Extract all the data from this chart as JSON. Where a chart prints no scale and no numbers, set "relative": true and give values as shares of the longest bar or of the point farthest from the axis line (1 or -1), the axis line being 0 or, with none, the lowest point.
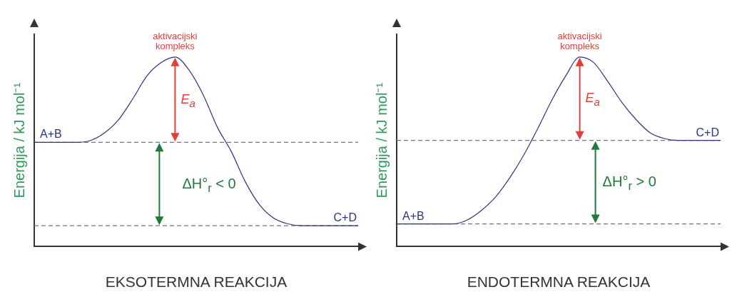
{
  "chart_data": [
    {
      "type": "line",
      "relative": true,
      "xlabel": "EKSOTERMNA REAKCIJA",
      "ylabel": "Energija / kJ mol⁻¹",
      "categories": [
        null,
        null,
        null,
        null,
        null,
        null,
        null,
        null,
        null,
        null,
        null,
        null,
        null,
        null,
        null,
        null,
        null,
        null,
        null,
        null,
        null,
        null,
        null,
        null
      ],
      "series": [
        {
          "color": "#2b3580",
          "values": [
            0.55,
            0.55,
            0.55,
            0.55,
            0.56,
            0.6,
            0.67,
            0.78,
            0.9,
            0.97,
            1,
            0.93,
            0.8,
            0.63,
            0.5,
            0.34,
            0.22,
            0.15,
            0.12,
            0.11,
            0.11,
            0.11,
            0.11,
            0.11
          ]
        }
      ],
      "ref_lines": [
        {
          "axis": "y",
          "value": 0.55,
          "color": "#777777",
          "line_style": "dashed"
        },
        {
          "axis": "y",
          "value": 0.11,
          "color": "#777777",
          "line_style": "dashed"
        }
      ],
      "annotations": [
        "aktivacijski kompleks",
        "A+B",
        "C+D",
        "E$_{a}$",
        "ΔH°$_{r}$ < 0"
      ],
      "marker": "none",
      "grid": false,
      "legend": false
    },
    {
      "type": "line",
      "relative": true,
      "xlabel": "ENDOTERMNA REAKCIJA",
      "ylabel": "Energija / kJ mol⁻¹",
      "categories": [
        null,
        null,
        null,
        null,
        null,
        null,
        null,
        null,
        null,
        null,
        null,
        null,
        null,
        null,
        null,
        null,
        null,
        null,
        null,
        null,
        null,
        null,
        null,
        null
      ],
      "series": [
        {
          "color": "#2b3580",
          "values": [
            0.12,
            0.12,
            0.12,
            0.12,
            0.12,
            0.14,
            0.19,
            0.26,
            0.36,
            0.48,
            0.62,
            0.77,
            0.9,
            1,
            0.97,
            0.87,
            0.76,
            0.67,
            0.6,
            0.57,
            0.56,
            0.56,
            0.56,
            0.56
          ]
        }
      ],
      "ref_lines": [
        {
          "axis": "y",
          "value": 0.56,
          "color": "#777777",
          "line_style": "dashed"
        },
        {
          "axis": "y",
          "value": 0.12,
          "color": "#777777",
          "line_style": "dashed"
        }
      ],
      "annotations": [
        "aktivacijski kompleks",
        "A+B",
        "C+D",
        "E$_{a}$",
        "ΔH°$_{r}$ > 0"
      ],
      "marker": "none",
      "grid": false,
      "legend": false
    }
  ]
}
